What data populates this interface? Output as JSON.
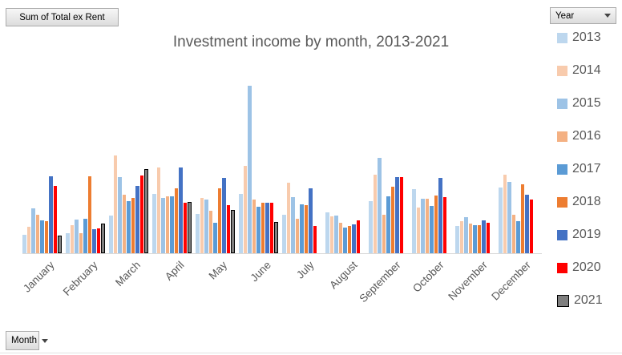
{
  "field_buttons": {
    "value_field": "Sum of Total ex Rent",
    "year_field": "Year",
    "month_field": "Month"
  },
  "chart_data": {
    "type": "bar",
    "title": "Investment income by month, 2013-2021",
    "xlabel": "",
    "ylabel": "",
    "y_axis_note": "no value axis, ticks or gridlines shown; values are relative bar heights (px above baseline), max 209",
    "legend_position": "right",
    "legend_title": "Year",
    "categories": [
      "January",
      "February",
      "March",
      "April",
      "May",
      "June",
      "July",
      "August",
      "September",
      "October",
      "November",
      "December"
    ],
    "series": [
      {
        "name": "2013",
        "color": "#BDD7EE",
        "values": [
          23,
          25,
          47,
          74,
          49,
          74,
          48,
          51,
          65,
          80,
          34,
          82
        ]
      },
      {
        "name": "2014",
        "color": "#F8CBAD",
        "values": [
          33,
          35,
          122,
          107,
          69,
          109,
          88,
          46,
          98,
          57,
          40,
          98
        ]
      },
      {
        "name": "2015",
        "color": "#9DC3E6",
        "values": [
          56,
          42,
          95,
          69,
          67,
          209,
          70,
          47,
          119,
          68,
          45,
          89
        ]
      },
      {
        "name": "2016",
        "color": "#F4B183",
        "values": [
          48,
          25,
          73,
          71,
          53,
          67,
          43,
          38,
          48,
          68,
          37,
          48
        ]
      },
      {
        "name": "2017",
        "color": "#5B9BD5",
        "values": [
          41,
          43,
          65,
          71,
          38,
          58,
          61,
          32,
          71,
          59,
          35,
          40
        ]
      },
      {
        "name": "2018",
        "color": "#ED7D31",
        "values": [
          40,
          96,
          69,
          81,
          81,
          63,
          60,
          34,
          83,
          72,
          35,
          86
        ]
      },
      {
        "name": "2019",
        "color": "#4472C4",
        "values": [
          96,
          30,
          84,
          107,
          94,
          63,
          81,
          36,
          95,
          94,
          41,
          73
        ]
      },
      {
        "name": "2020",
        "color": "#FF0000",
        "values": [
          84,
          31,
          97,
          63,
          60,
          63,
          34,
          41,
          95,
          70,
          38,
          67
        ]
      },
      {
        "name": "2021",
        "color": "#7F7F7F",
        "border_color": "#000000",
        "values": [
          22,
          37,
          105,
          64,
          54,
          39,
          null,
          null,
          null,
          null,
          null,
          null
        ]
      }
    ],
    "axis_color": "#D9D9D9",
    "text_color": "#595959"
  }
}
